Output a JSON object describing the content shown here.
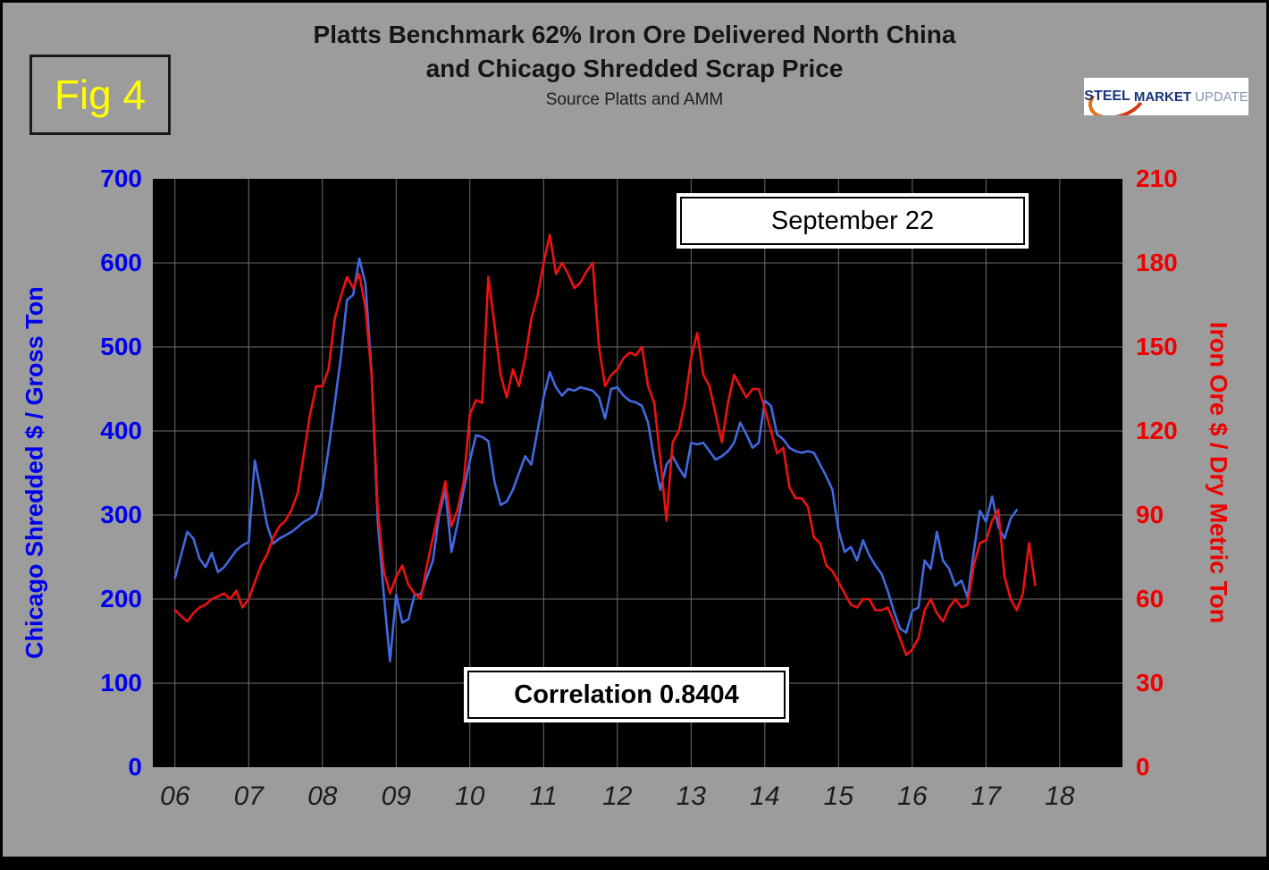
{
  "fig_label": "Fig 4",
  "title": {
    "line1": "Platts Benchmark 62% Iron Ore Delivered North China",
    "line2": "and Chicago Shredded Scrap Price",
    "subtitle": "Source Platts and AMM"
  },
  "logo": {
    "steel": "STEEL",
    "market": "MARKET",
    "update": "UPDATE"
  },
  "annotations": {
    "date_box": "September 22",
    "correlation_box": "Correlation 0.8404"
  },
  "axes": {
    "left": {
      "title": "Chicago Shredded $ / Gross Ton",
      "ticks": [
        700,
        600,
        500,
        400,
        300,
        200,
        100,
        0
      ],
      "color": "#0000ee"
    },
    "right": {
      "title": "Iron Ore $ / Dry Metric Ton",
      "ticks": [
        210,
        180,
        150,
        120,
        90,
        60,
        30,
        0
      ],
      "color": "#ee0000"
    },
    "x": {
      "ticks": [
        "06",
        "07",
        "08",
        "09",
        "10",
        "11",
        "12",
        "13",
        "14",
        "15",
        "16",
        "17",
        "18"
      ]
    }
  },
  "chart_data": {
    "type": "line",
    "title": "Platts Benchmark 62% Iron Ore Delivered North China and Chicago Shredded Scrap Price",
    "subtitle": "Source Platts and AMM",
    "correlation": 0.8404,
    "x_range": [
      2005.7,
      2018.85
    ],
    "left_ylim": [
      0,
      700
    ],
    "right_ylim": [
      0,
      210
    ],
    "grid": {
      "horizontal_step": 100,
      "vertical_years": [
        2006,
        2007,
        2008,
        2009,
        2010,
        2011,
        2012,
        2013,
        2014,
        2015,
        2016,
        2017,
        2018
      ],
      "color": "#6e6e6e"
    },
    "plot_background": "#000000",
    "series": [
      {
        "name": "Chicago Shredded $ / Gross Ton",
        "axis": "left",
        "color": "#4169e1",
        "x_start": 2006.0,
        "x_step": 0.083333,
        "values": [
          225,
          252,
          280,
          272,
          248,
          238,
          255,
          232,
          238,
          248,
          258,
          264,
          268,
          365,
          328,
          288,
          266,
          272,
          276,
          280,
          286,
          292,
          296,
          302,
          330,
          378,
          432,
          488,
          556,
          562,
          605,
          576,
          470,
          292,
          205,
          126,
          205,
          172,
          176,
          205,
          206,
          226,
          246,
          300,
          330,
          256,
          290,
          330,
          365,
          395,
          393,
          388,
          340,
          312,
          316,
          330,
          350,
          370,
          360,
          400,
          440,
          470,
          452,
          442,
          450,
          448,
          452,
          450,
          448,
          440,
          415,
          450,
          452,
          442,
          436,
          434,
          430,
          410,
          366,
          330,
          360,
          370,
          356,
          345,
          386,
          384,
          386,
          376,
          366,
          370,
          376,
          386,
          410,
          396,
          380,
          386,
          436,
          430,
          396,
          390,
          380,
          376,
          374,
          376,
          374,
          360,
          346,
          330,
          282,
          256,
          262,
          246,
          270,
          252,
          240,
          230,
          210,
          186,
          165,
          160,
          186,
          190,
          246,
          236,
          280,
          246,
          236,
          216,
          222,
          202,
          256,
          305,
          292,
          322,
          286,
          272,
          296,
          306
        ]
      },
      {
        "name": "Iron Ore $ / Dry Metric Ton",
        "axis": "right",
        "color": "#ee1111",
        "x_start": 2006.0,
        "x_step": 0.083333,
        "values": [
          56,
          54,
          52,
          55,
          57,
          58,
          60,
          61,
          62,
          60,
          63,
          57,
          60,
          66,
          72,
          76,
          82,
          86,
          88,
          92,
          98,
          112,
          126,
          136,
          136,
          142,
          160,
          168,
          175,
          171,
          176,
          164,
          140,
          92,
          70,
          62,
          68,
          72,
          65,
          62,
          60,
          72,
          82,
          92,
          102,
          86,
          92,
          102,
          126,
          131,
          130,
          175,
          158,
          140,
          132,
          142,
          136,
          146,
          160,
          168,
          180,
          190,
          176,
          180,
          176,
          171,
          173,
          177,
          180,
          150,
          136,
          140,
          142,
          146,
          148,
          147,
          150,
          136,
          130,
          110,
          88,
          116,
          120,
          130,
          146,
          155,
          140,
          136,
          126,
          116,
          130,
          140,
          136,
          132,
          135,
          135,
          128,
          120,
          112,
          114,
          100,
          96,
          96,
          93,
          82,
          80,
          72,
          70,
          66,
          62,
          58,
          57,
          60,
          60,
          56,
          56,
          57,
          52,
          46,
          40,
          42,
          46,
          56,
          60,
          55,
          52,
          57,
          60,
          57,
          58,
          72,
          80,
          81,
          88,
          92,
          68,
          60,
          56,
          62,
          80,
          65
        ]
      }
    ]
  }
}
